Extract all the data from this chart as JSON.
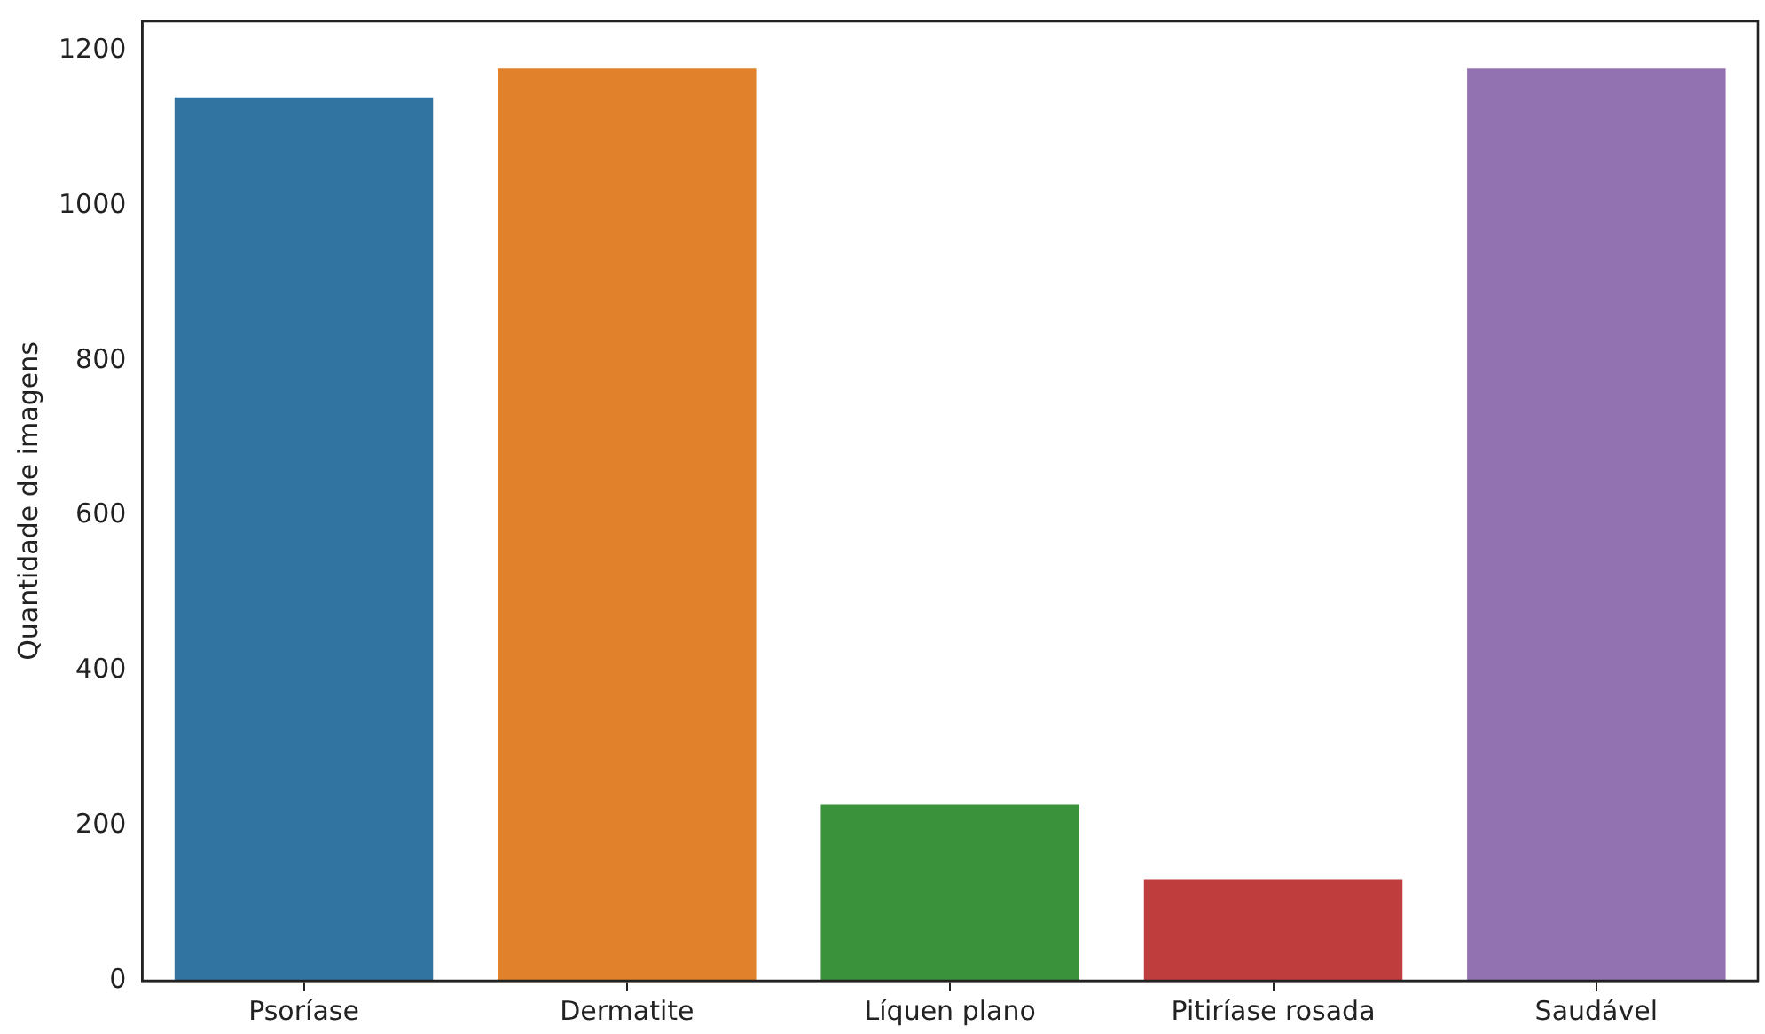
{
  "chart_data": {
    "type": "bar",
    "ylabel": "Quantidade de imagens",
    "categories": [
      "Psoríase",
      "Dermatite",
      "Líquen plano",
      "Pitiríase rosada",
      "Saudável"
    ],
    "values": [
      1140,
      1177,
      227,
      131,
      1177
    ],
    "colors": [
      "#3274a1",
      "#e1812c",
      "#3a923a",
      "#c03d3e",
      "#9372b2"
    ],
    "ylim": [
      0,
      1238
    ],
    "yticks": [
      0,
      200,
      400,
      600,
      800,
      1000,
      1200
    ],
    "grid": false,
    "legend": false
  }
}
